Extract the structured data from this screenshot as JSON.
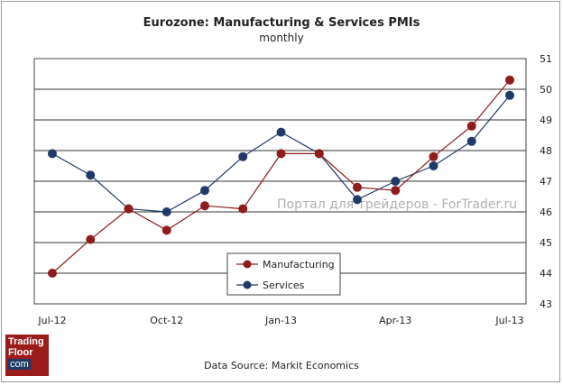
{
  "chart_data": {
    "type": "line",
    "title": "Eurozone: Manufacturing & Services PMIs",
    "subtitle": "monthly",
    "categories": [
      "Jul-12",
      "Aug-12",
      "Sep-12",
      "Oct-12",
      "Nov-12",
      "Dec-12",
      "Jan-13",
      "Feb-13",
      "Mar-13",
      "Apr-13",
      "May-13",
      "Jun-13",
      "Jul-13"
    ],
    "x_tick_labels": [
      "Jul-12",
      "Oct-12",
      "Jan-13",
      "Apr-13",
      "Jul-13"
    ],
    "y_ticks": [
      43,
      44,
      45,
      46,
      47,
      48,
      49,
      50,
      51
    ],
    "ylim": [
      43,
      51
    ],
    "y_axis_side": "right",
    "grid": true,
    "legend_placement": "bottom-center",
    "series": [
      {
        "name": "Manufacturing",
        "color": "#8e1c1c",
        "values": [
          44.0,
          45.1,
          46.1,
          45.4,
          46.2,
          46.1,
          47.9,
          47.9,
          46.8,
          46.7,
          47.8,
          48.8,
          50.3
        ]
      },
      {
        "name": "Services",
        "color": "#1f3a68",
        "values": [
          47.9,
          47.2,
          46.1,
          46.0,
          46.7,
          47.8,
          48.6,
          47.9,
          46.4,
          47.0,
          47.5,
          48.3,
          49.8
        ]
      }
    ],
    "source": "Data Source:  Markit Economics",
    "watermark": "Портал для трейдеров - ForTrader.ru"
  },
  "logo": {
    "line1": "Trading",
    "line2": "Floor",
    "line3": "com"
  }
}
